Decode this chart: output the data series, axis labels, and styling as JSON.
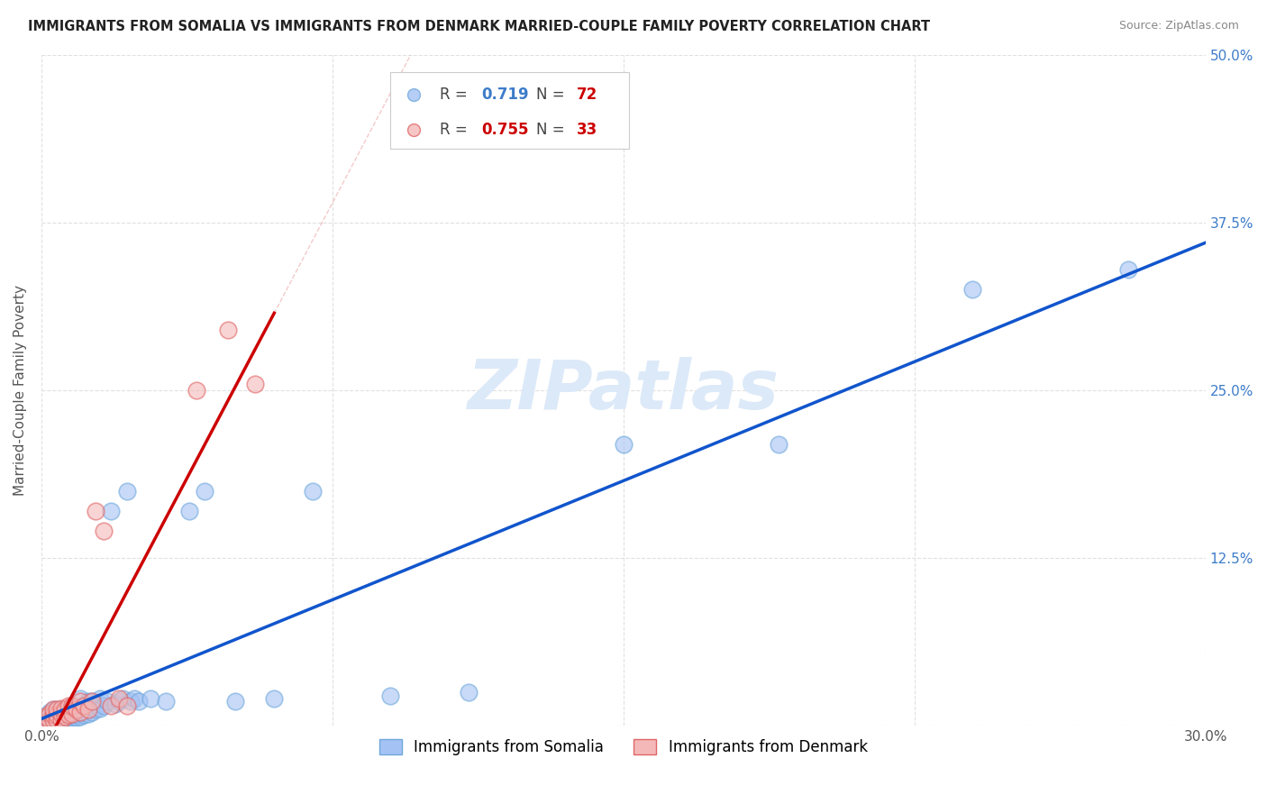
{
  "title": "IMMIGRANTS FROM SOMALIA VS IMMIGRANTS FROM DENMARK MARRIED-COUPLE FAMILY POVERTY CORRELATION CHART",
  "source": "Source: ZipAtlas.com",
  "ylabel": "Married-Couple Family Poverty",
  "xlim": [
    0.0,
    0.3
  ],
  "ylim": [
    0.0,
    0.5
  ],
  "xticks": [
    0.0,
    0.075,
    0.15,
    0.225,
    0.3
  ],
  "xticklabels": [
    "0.0%",
    "",
    "",
    "",
    "30.0%"
  ],
  "yticks": [
    0.0,
    0.125,
    0.25,
    0.375,
    0.5
  ],
  "ytick_right_labels": [
    "",
    "12.5%",
    "25.0%",
    "37.5%",
    "50.0%"
  ],
  "somalia_color": "#a4c2f4",
  "somalia_edge": "#6fa8dc",
  "denmark_color": "#f4b8b8",
  "denmark_edge": "#e06666",
  "somalia_R": "0.719",
  "somalia_N": "72",
  "denmark_R": "0.755",
  "denmark_N": "33",
  "reg_somalia_color": "#1155cc",
  "reg_denmark_color": "#cc0000",
  "watermark_color": "#dce9f8",
  "background_color": "#ffffff",
  "grid_color": "#e0e0e0",
  "somalia_x": [
    0.001,
    0.001,
    0.001,
    0.002,
    0.002,
    0.002,
    0.002,
    0.003,
    0.003,
    0.003,
    0.003,
    0.003,
    0.004,
    0.004,
    0.004,
    0.004,
    0.004,
    0.005,
    0.005,
    0.005,
    0.005,
    0.005,
    0.006,
    0.006,
    0.006,
    0.006,
    0.007,
    0.007,
    0.007,
    0.007,
    0.008,
    0.008,
    0.008,
    0.008,
    0.009,
    0.009,
    0.009,
    0.01,
    0.01,
    0.01,
    0.011,
    0.011,
    0.012,
    0.012,
    0.013,
    0.013,
    0.014,
    0.015,
    0.015,
    0.016,
    0.017,
    0.018,
    0.019,
    0.02,
    0.021,
    0.022,
    0.023,
    0.024,
    0.025,
    0.028,
    0.032,
    0.038,
    0.042,
    0.05,
    0.06,
    0.07,
    0.09,
    0.11,
    0.15,
    0.19,
    0.24,
    0.28
  ],
  "somalia_y": [
    0.002,
    0.004,
    0.007,
    0.003,
    0.005,
    0.008,
    0.01,
    0.002,
    0.004,
    0.007,
    0.01,
    0.012,
    0.003,
    0.005,
    0.007,
    0.009,
    0.012,
    0.003,
    0.005,
    0.007,
    0.009,
    0.012,
    0.004,
    0.006,
    0.008,
    0.012,
    0.004,
    0.006,
    0.009,
    0.013,
    0.005,
    0.007,
    0.01,
    0.015,
    0.006,
    0.009,
    0.012,
    0.007,
    0.01,
    0.02,
    0.008,
    0.015,
    0.009,
    0.018,
    0.01,
    0.018,
    0.012,
    0.013,
    0.02,
    0.015,
    0.018,
    0.16,
    0.016,
    0.018,
    0.02,
    0.175,
    0.018,
    0.02,
    0.018,
    0.02,
    0.018,
    0.16,
    0.175,
    0.018,
    0.02,
    0.175,
    0.022,
    0.025,
    0.21,
    0.21,
    0.325,
    0.34
  ],
  "denmark_x": [
    0.001,
    0.001,
    0.002,
    0.002,
    0.003,
    0.003,
    0.003,
    0.004,
    0.004,
    0.004,
    0.005,
    0.005,
    0.005,
    0.006,
    0.006,
    0.007,
    0.007,
    0.008,
    0.008,
    0.009,
    0.01,
    0.01,
    0.011,
    0.012,
    0.013,
    0.014,
    0.016,
    0.018,
    0.02,
    0.022,
    0.04,
    0.048,
    0.055
  ],
  "denmark_y": [
    0.003,
    0.007,
    0.004,
    0.009,
    0.004,
    0.008,
    0.012,
    0.004,
    0.008,
    0.012,
    0.004,
    0.009,
    0.013,
    0.007,
    0.012,
    0.008,
    0.015,
    0.009,
    0.015,
    0.012,
    0.01,
    0.018,
    0.015,
    0.012,
    0.018,
    0.16,
    0.145,
    0.015,
    0.02,
    0.015,
    0.25,
    0.295,
    0.255
  ]
}
